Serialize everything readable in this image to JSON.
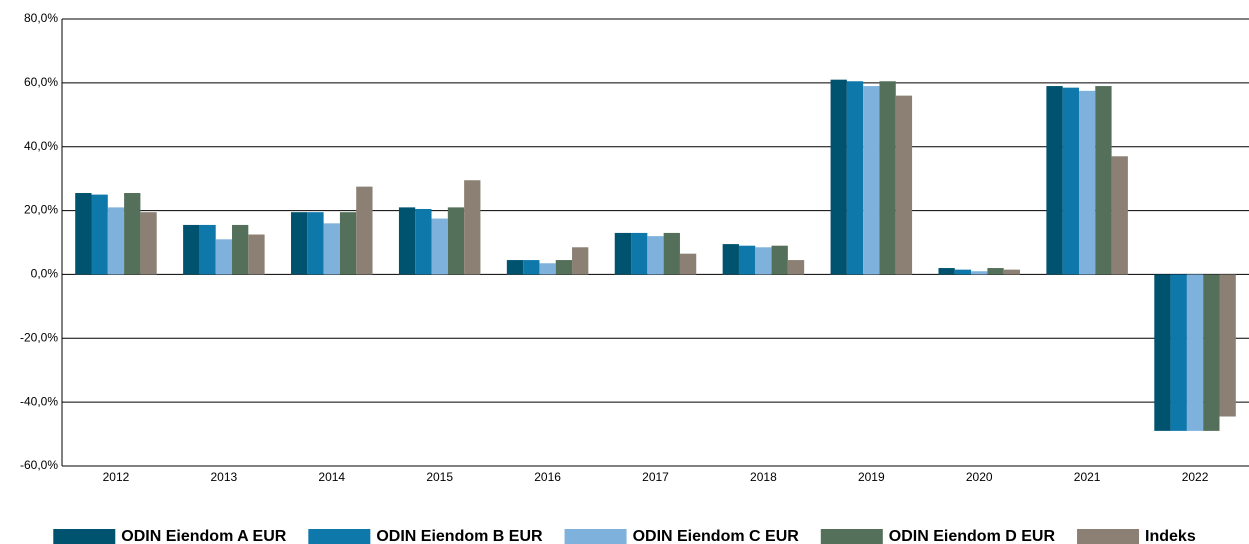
{
  "chart_data": {
    "type": "bar",
    "categories": [
      "2012",
      "2013",
      "2014",
      "2015",
      "2016",
      "2017",
      "2018",
      "2019",
      "2020",
      "2021",
      "2022"
    ],
    "series": [
      {
        "name": "ODIN Eiendom A EUR",
        "color": "#00536f",
        "values": [
          25.5,
          15.5,
          19.5,
          21,
          4.5,
          13,
          9.5,
          61,
          2,
          59,
          -49
        ]
      },
      {
        "name": "ODIN Eiendom B EUR",
        "color": "#0f78aa",
        "values": [
          25,
          15.5,
          19.5,
          20.5,
          4.5,
          13,
          9,
          60.5,
          1.5,
          58.5,
          -49
        ]
      },
      {
        "name": "ODIN Eiendom C EUR",
        "color": "#7eb2dd",
        "values": [
          21,
          11,
          16,
          17.5,
          3.5,
          12,
          8.5,
          59,
          1,
          57.5,
          -49
        ]
      },
      {
        "name": "ODIN Eiendom D EUR",
        "color": "#54705a",
        "values": [
          25.5,
          15.5,
          19.5,
          21,
          4.5,
          13,
          9,
          60.5,
          2,
          59,
          -49
        ]
      },
      {
        "name": "Indeks",
        "color": "#8b8073",
        "values": [
          19.5,
          12.5,
          27.5,
          29.5,
          8.5,
          6.5,
          4.5,
          56,
          1.5,
          37,
          -44.5
        ]
      }
    ],
    "ylim": [
      -60,
      80
    ],
    "yticks": [
      {
        "value": -60,
        "label": "-60,0%"
      },
      {
        "value": -40,
        "label": "-40,0%"
      },
      {
        "value": -20,
        "label": "-20,0%"
      },
      {
        "value": 0,
        "label": "0,0%"
      },
      {
        "value": 20,
        "label": "20,0%"
      },
      {
        "value": 40,
        "label": "40,0%"
      },
      {
        "value": 60,
        "label": "60,0%"
      },
      {
        "value": 80,
        "label": "80,0%"
      }
    ],
    "grid": true,
    "legend": "bottom"
  }
}
